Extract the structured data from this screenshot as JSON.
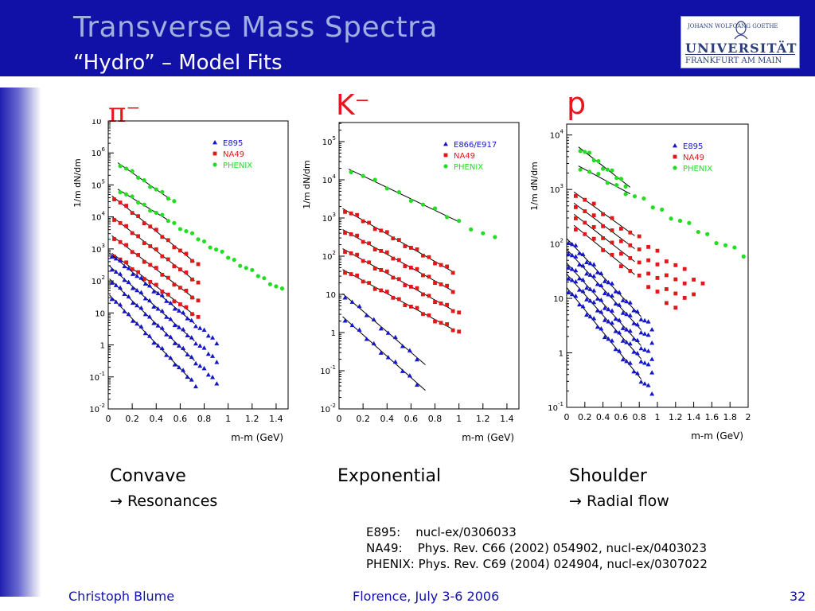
{
  "slide": {
    "title": "Transverse Mass Spectra",
    "subtitle": "“Hydro” – Model Fits",
    "page_number": "32",
    "footer_author": "Christoph Blume",
    "footer_conference": "Florence, July 3-6 2006"
  },
  "logo": {
    "line1": "JOHANN WOLFGANG GOETHE",
    "line2": "UNIVERSITÄT",
    "line3": "FRANKFURT AM MAIN"
  },
  "colors": {
    "header": "#1111a8",
    "title": "#9fb0de",
    "particle_label": "#e8151c",
    "E895": "#1515cc",
    "NA49": "#e01818",
    "PHENIX": "#22dd22"
  },
  "panels": {
    "pion": {
      "label": "π⁻",
      "shape": "Convave",
      "note": "→ Resonances"
    },
    "kaon": {
      "label": "K⁻",
      "shape": "Exponential",
      "note": ""
    },
    "proton": {
      "label": "p",
      "shape": "Shoulder",
      "note": "→ Radial flow"
    }
  },
  "references": [
    {
      "exp": "E895:",
      "text": "nucl-ex/0306033"
    },
    {
      "exp": "NA49:",
      "text": "Phys. Rev. C66 (2002) 054902, nucl-ex/0403023"
    },
    {
      "exp": "PHENIX:",
      "text": "Phys. Rev. C69 (2004) 024904, nucl-ex/0307022"
    }
  ],
  "chart_data": [
    {
      "type": "scatter",
      "particle": "π⁻",
      "ylabel": "1/m_t dN/dm_t",
      "xlabel": "m_t-m_0 (GeV)",
      "y_scale": "log",
      "xlim": [
        0,
        1.5
      ],
      "ylim_log10": [
        -2,
        7
      ],
      "xticks": [
        "0",
        "0.2",
        "0.4",
        "0.6",
        "0.8",
        "1",
        "1.2",
        "1.4"
      ],
      "yticks": [
        "10^-2",
        "10^-1",
        "1",
        "10",
        "10^2",
        "10^3",
        "10^4",
        "10^5",
        "10^6",
        "10^7"
      ],
      "legend": [
        "E895",
        "NA49",
        "PHENIX"
      ],
      "series": [
        {
          "name": "PHENIX",
          "groups": [
            {
              "x0": 0.1,
              "x1": 0.55,
              "step": 0.05,
              "a": 5.9,
              "s": 2.6,
              "fit_end": 0.52
            },
            {
              "x0": 0.1,
              "x1": 1.45,
              "step": 0.05,
              "a": 5.05,
              "s": 2.3,
              "fit_end": 0.5
            }
          ]
        },
        {
          "name": "NA49",
          "groups": [
            {
              "x0": 0.05,
              "x1": 0.75,
              "step": 0.05,
              "a": 4.75,
              "s": 3.0,
              "fit_end": 0.72
            },
            {
              "x0": 0.05,
              "x1": 0.75,
              "step": 0.05,
              "a": 4.1,
              "s": 2.9,
              "fit_end": 0.72
            },
            {
              "x0": 0.05,
              "x1": 0.75,
              "step": 0.05,
              "a": 3.5,
              "s": 2.85,
              "fit_end": 0.72
            },
            {
              "x0": 0.05,
              "x1": 0.75,
              "step": 0.05,
              "a": 2.95,
              "s": 2.8,
              "fit_end": 0.72
            }
          ]
        },
        {
          "name": "E895",
          "groups": [
            {
              "x0": 0.03,
              "x1": 0.92,
              "step": 0.035,
              "a": 2.9,
              "s": 3.1,
              "fit_end": 0.72
            },
            {
              "x0": 0.03,
              "x1": 0.92,
              "step": 0.035,
              "a": 2.5,
              "s": 3.3,
              "fit_end": 0.72
            },
            {
              "x0": 0.03,
              "x1": 0.92,
              "step": 0.035,
              "a": 2.1,
              "s": 3.6,
              "fit_end": 0.72
            },
            {
              "x0": 0.03,
              "x1": 0.75,
              "step": 0.035,
              "a": 1.6,
              "s": 3.9,
              "fit_end": 0.7
            }
          ]
        }
      ]
    },
    {
      "type": "scatter",
      "particle": "K⁻",
      "ylabel": "1/m_t dN/dm_t",
      "xlabel": "m_t-m_0 (GeV)",
      "y_scale": "log",
      "xlim": [
        0,
        1.5
      ],
      "ylim_log10": [
        -2,
        5.5
      ],
      "xticks": [
        "0",
        "0.2",
        "0.4",
        "0.6",
        "0.8",
        "1",
        "1.2",
        "1.4"
      ],
      "yticks": [
        "10^-2",
        "10^-1",
        "1",
        "10",
        "10^2",
        "10^3",
        "10^4",
        "10^5"
      ],
      "legend": [
        "E866/E917",
        "NA49",
        "PHENIX"
      ],
      "series": [
        {
          "name": "PHENIX",
          "groups": [
            {
              "x0": 0.1,
              "x1": 1.3,
              "step": 0.1,
              "a": 4.4,
              "s": 1.5,
              "fit_end": 1.0
            }
          ]
        },
        {
          "name": "NA49",
          "groups": [
            {
              "x0": 0.05,
              "x1": 0.95,
              "step": 0.05,
              "a": 3.3,
              "s": 1.8,
              "fit_end": 0.95
            },
            {
              "x0": 0.05,
              "x1": 0.95,
              "step": 0.05,
              "a": 2.75,
              "s": 1.75,
              "fit_end": 0.95
            },
            {
              "x0": 0.05,
              "x1": 1.0,
              "step": 0.05,
              "a": 2.25,
              "s": 1.75,
              "fit_end": 0.95
            },
            {
              "x0": 0.05,
              "x1": 1.0,
              "step": 0.05,
              "a": 1.7,
              "s": 1.7,
              "fit_end": 0.95
            }
          ]
        },
        {
          "name": "E866/E917",
          "groups": [
            {
              "x0": 0.05,
              "x1": 0.65,
              "step": 0.06,
              "a": 1.1,
              "s": 2.7,
              "fit_end": 0.72
            },
            {
              "x0": 0.05,
              "x1": 0.7,
              "step": 0.06,
              "a": 0.5,
              "s": 2.8,
              "fit_end": 0.72
            }
          ]
        }
      ]
    },
    {
      "type": "scatter",
      "particle": "p",
      "ylabel": "1/m_t dN/dm_t",
      "xlabel": "m_t-m_0 (GeV)",
      "y_scale": "log",
      "xlim": [
        0,
        2.0
      ],
      "ylim_log10": [
        -1,
        4.2
      ],
      "xticks": [
        "0",
        "0.2",
        "0.4",
        "0.6",
        "0.8",
        "1",
        "1.2",
        "1.4",
        "1.6",
        "1.8",
        "2"
      ],
      "yticks": [
        "10^-1",
        "1",
        "10",
        "10^2",
        "10^3",
        "10^4"
      ],
      "legend": [
        "E895",
        "NA49",
        "PHENIX"
      ],
      "series": [
        {
          "name": "PHENIX",
          "groups": [
            {
              "x0": 0.15,
              "x1": 0.65,
              "step": 0.05,
              "a": 3.95,
              "s": 1.3,
              "fit_end": 0.7
            },
            {
              "x0": 0.15,
              "x1": 1.95,
              "step": 0.1,
              "a": 3.55,
              "s": 0.9,
              "fit_end": 0.7
            }
          ]
        },
        {
          "name": "NA49",
          "groups": [
            {
              "x0": 0.1,
              "x1": 1.5,
              "step": 0.1,
              "a": 3.05,
              "s": 1.2,
              "fit_end": 0.75
            },
            {
              "x0": 0.1,
              "x1": 1.4,
              "step": 0.1,
              "a": 2.85,
              "s": 1.25,
              "fit_end": 0.75
            },
            {
              "x0": 0.1,
              "x1": 1.3,
              "step": 0.1,
              "a": 2.65,
              "s": 1.3,
              "fit_end": 0.75
            },
            {
              "x0": 0.1,
              "x1": 1.2,
              "step": 0.1,
              "a": 2.45,
              "s": 1.35,
              "fit_end": 0.75
            }
          ]
        },
        {
          "name": "E895",
          "groups": [
            {
              "x0": 0.02,
              "x1": 0.95,
              "step": 0.04,
              "a": 2.1,
              "s": 1.75,
              "fit_end": 0.82
            },
            {
              "x0": 0.02,
              "x1": 0.95,
              "step": 0.04,
              "a": 1.9,
              "s": 1.8,
              "fit_end": 0.82
            },
            {
              "x0": 0.02,
              "x1": 0.95,
              "step": 0.04,
              "a": 1.65,
              "s": 1.85,
              "fit_end": 0.82
            },
            {
              "x0": 0.02,
              "x1": 0.95,
              "step": 0.04,
              "a": 1.45,
              "s": 1.9,
              "fit_end": 0.82
            },
            {
              "x0": 0.02,
              "x1": 0.95,
              "step": 0.04,
              "a": 1.2,
              "s": 2.05,
              "fit_end": 0.82
            }
          ]
        }
      ]
    }
  ]
}
